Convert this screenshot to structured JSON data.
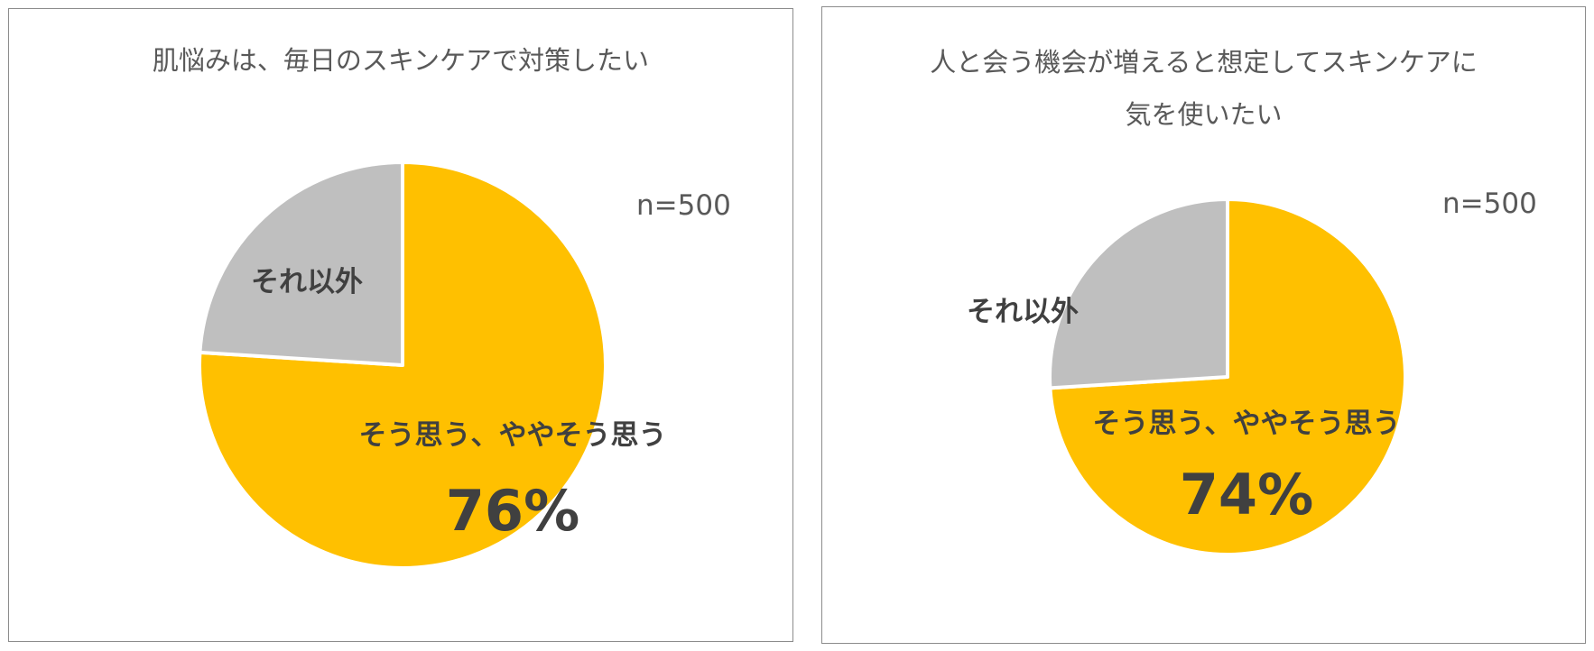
{
  "chart_data": [
    {
      "type": "pie",
      "title": "肌悩みは、毎日のスキンケアで対策したい",
      "n_label": "n=500",
      "slices": [
        {
          "label": "そう思う、ややそう思う",
          "value": 76,
          "value_label": "76%",
          "color": "#FFC000"
        },
        {
          "label": "それ以外",
          "value": 24,
          "color": "#BFBFBF"
        }
      ]
    },
    {
      "type": "pie",
      "title": "人と会う機会が増えると想定してスキンケアに\n気を使いたい",
      "n_label": "n=500",
      "slices": [
        {
          "label": "そう思う、ややそう思う",
          "value": 74,
          "value_label": "74%",
          "color": "#FFC000"
        },
        {
          "label": "それ以外",
          "value": 26,
          "color": "#BFBFBF"
        }
      ]
    }
  ]
}
